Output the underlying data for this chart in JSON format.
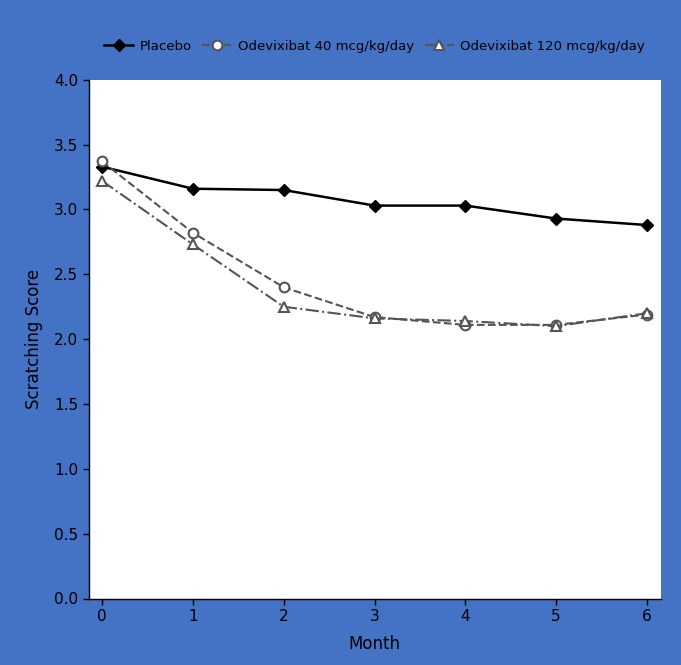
{
  "months": [
    0,
    1,
    2,
    3,
    4,
    5,
    6
  ],
  "placebo": [
    3.33,
    3.16,
    3.15,
    3.03,
    3.03,
    2.93,
    2.88
  ],
  "ode40": [
    3.37,
    2.82,
    2.4,
    2.17,
    2.11,
    2.11,
    2.19
  ],
  "ode120": [
    3.22,
    2.73,
    2.25,
    2.16,
    2.14,
    2.1,
    2.2
  ],
  "xlabel": "Month",
  "ylabel": "Scratching Score",
  "ylim": [
    0.0,
    4.0
  ],
  "xlim": [
    -0.15,
    6.15
  ],
  "yticks": [
    0.0,
    0.5,
    1.0,
    1.5,
    2.0,
    2.5,
    3.0,
    3.5,
    4.0
  ],
  "xticks": [
    0,
    1,
    2,
    3,
    4,
    5,
    6
  ],
  "legend_labels": [
    "Placebo",
    "Odevixibat 40 mcg/kg/day",
    "Odevixibat 120 mcg/kg/day"
  ],
  "placebo_color": "#000000",
  "ode_color": "#555555",
  "background_color": "#ffffff",
  "border_color": "#4472C4",
  "figsize": [
    6.81,
    6.65
  ],
  "dpi": 100
}
